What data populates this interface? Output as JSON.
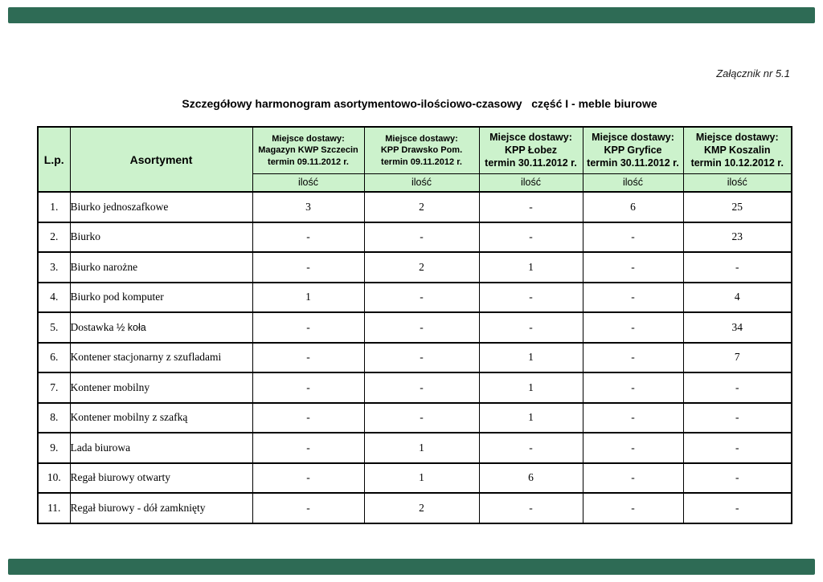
{
  "page": {
    "attachment_label": "Załącznik nr 5.1",
    "title": "Szczegółowy harmonogram asortymentowo-ilościowo-czasowy   część I - meble biurowe"
  },
  "colors": {
    "header_bg": "#ccf2cc",
    "edge_bar": "#2e6b55",
    "border": "#000000",
    "page_bg": "#ffffff"
  },
  "table": {
    "lp_header": "L.p.",
    "asortyment_header": "Asortyment",
    "delivery_label": "Miejsce dostawy:",
    "qty_label": "ilość",
    "locations": [
      {
        "place": "Magazyn KWP Szczecin",
        "termin": "termin 09.11.2012 r."
      },
      {
        "place": "KPP Drawsko Pom.",
        "termin": "termin 09.11.2012 r."
      },
      {
        "place": "KPP Łobez",
        "termin": "termin 30.11.2012 r."
      },
      {
        "place": "KPP Gryfice",
        "termin": "termin 30.11.2012 r."
      },
      {
        "place": "KMP Koszalin",
        "termin": "termin 10.12.2012 r."
      }
    ],
    "rows": [
      {
        "lp": "1.",
        "name": "Biurko jednoszafkowe",
        "qty": [
          "3",
          "2",
          "-",
          "6",
          "25"
        ]
      },
      {
        "lp": "2.",
        "name": "Biurko",
        "qty": [
          "-",
          "-",
          "-",
          "-",
          "23"
        ]
      },
      {
        "lp": "3.",
        "name": "Biurko narożne",
        "qty": [
          "-",
          "2",
          "1",
          "-",
          "-"
        ]
      },
      {
        "lp": "4.",
        "name": "Biurko pod komputer",
        "qty": [
          "1",
          "-",
          "-",
          "-",
          "4"
        ]
      },
      {
        "lp": "5.",
        "name": "Dostawka ½ koła",
        "qty": [
          "-",
          "-",
          "-",
          "-",
          "34"
        ]
      },
      {
        "lp": "6.",
        "name": "Kontener stacjonarny z szufladami",
        "qty": [
          "-",
          "-",
          "1",
          "-",
          "7"
        ]
      },
      {
        "lp": "7.",
        "name": "Kontener mobilny",
        "qty": [
          "-",
          "-",
          "1",
          "-",
          "-"
        ]
      },
      {
        "lp": "8.",
        "name": "Kontener mobilny z szafką",
        "qty": [
          "-",
          "-",
          "1",
          "-",
          "-"
        ]
      },
      {
        "lp": "9.",
        "name": "Lada biurowa",
        "qty": [
          "-",
          "1",
          "-",
          "-",
          "-"
        ]
      },
      {
        "lp": "10.",
        "name": "Regał biurowy otwarty",
        "qty": [
          "-",
          "1",
          "6",
          "-",
          "-"
        ]
      },
      {
        "lp": "11.",
        "name": "Regał biurowy - dół zamknięty",
        "qty": [
          "-",
          "2",
          "-",
          "-",
          "-"
        ]
      }
    ]
  }
}
